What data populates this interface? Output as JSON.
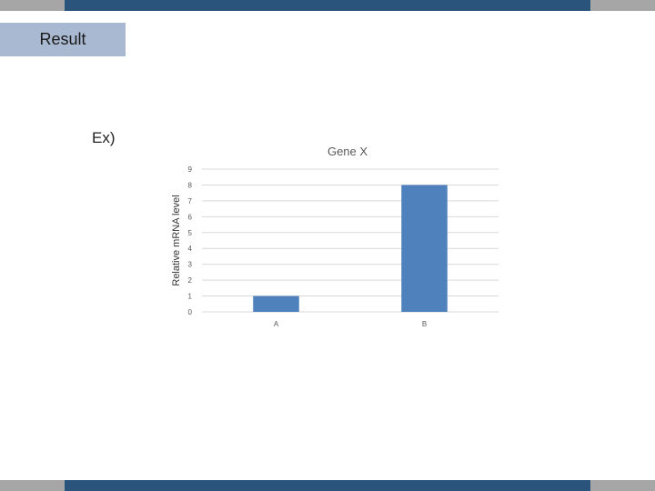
{
  "header": {
    "tab_label": "Result"
  },
  "body": {
    "example_label": "Ex)"
  },
  "colors": {
    "strip_blue": "#2a547c",
    "strip_gray": "#a6a6a6",
    "tab_bg": "#a8b9d1",
    "bar": "#4f81bd",
    "grid": "#d9d9d9"
  },
  "chart_data": {
    "type": "bar",
    "title": "Gene X",
    "xlabel": "",
    "ylabel": "Relative mRNA level",
    "categories": [
      "A",
      "B"
    ],
    "values": [
      1,
      8
    ],
    "ylim": [
      0,
      9
    ],
    "yticks": [
      0,
      1,
      2,
      3,
      4,
      5,
      6,
      7,
      8,
      9
    ],
    "grid": true
  }
}
